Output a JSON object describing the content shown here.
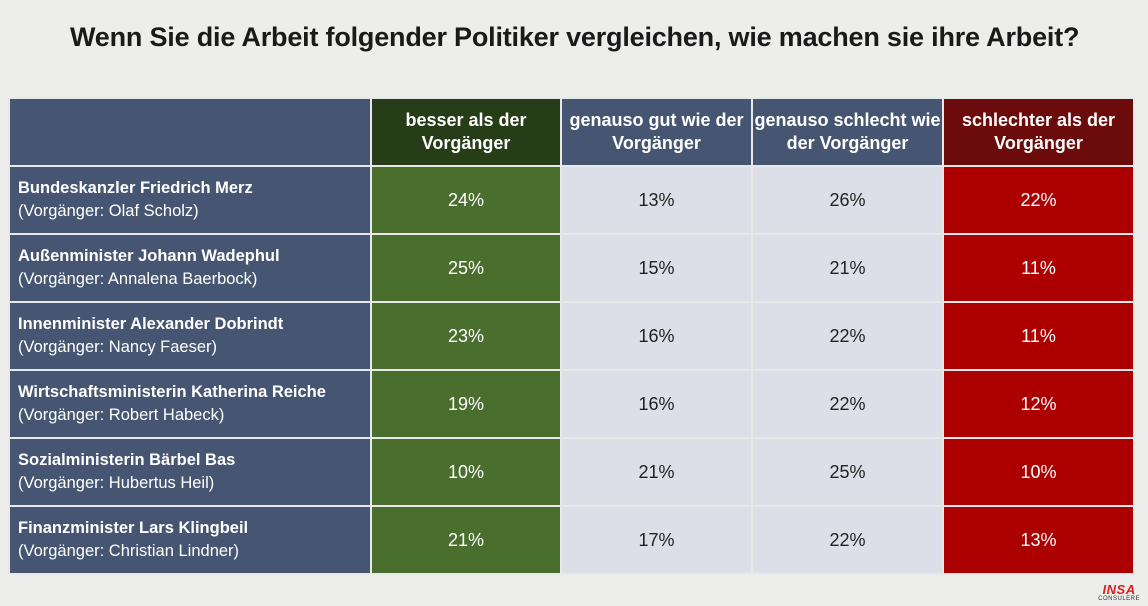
{
  "title": "Wenn Sie die Arbeit folgender Politiker vergleichen, wie machen sie ihre Arbeit?",
  "chart_data": {
    "type": "table",
    "title": "Wenn Sie die Arbeit folgender Politiker vergleichen, wie machen sie ihre Arbeit?",
    "columns": [
      {
        "key": "better",
        "label": "besser als der Vorgänger",
        "color": "#273d18",
        "cell_color": "#4a6e2d"
      },
      {
        "key": "same_good",
        "label": "genauso gut wie der Vorgänger",
        "color": "#465672",
        "cell_color": "#dcdfe7"
      },
      {
        "key": "same_bad",
        "label": "genauso schlecht wie der Vorgänger",
        "color": "#465672",
        "cell_color": "#dcdfe7"
      },
      {
        "key": "worse",
        "label": "schlechter als der Vorgänger",
        "color": "#6c0b0b",
        "cell_color": "#ac0000"
      }
    ],
    "rows": [
      {
        "politician": "Bundeskanzler Friedrich Merz",
        "predecessor": "(Vorgänger: Olaf Scholz)",
        "values": [
          "24%",
          "13%",
          "26%",
          "22%"
        ]
      },
      {
        "politician": "Außenminister Johann Wadephul",
        "predecessor": "(Vorgänger: Annalena Baerbock)",
        "values": [
          "25%",
          "15%",
          "21%",
          "11%"
        ]
      },
      {
        "politician": "Innenminister Alexander Dobrindt",
        "predecessor": "(Vorgänger: Nancy Faeser)",
        "values": [
          "23%",
          "16%",
          "22%",
          "11%"
        ]
      },
      {
        "politician": "Wirtschaftsministerin Katherina Reiche",
        "predecessor": "(Vorgänger: Robert Habeck)",
        "values": [
          "19%",
          "16%",
          "22%",
          "12%"
        ]
      },
      {
        "politician": "Sozialministerin Bärbel Bas",
        "predecessor": "(Vorgänger: Hubertus Heil)",
        "values": [
          "10%",
          "21%",
          "25%",
          "10%"
        ]
      },
      {
        "politician": "Finanzminister Lars Klingbeil",
        "predecessor": "(Vorgänger: Christian Lindner)",
        "values": [
          "21%",
          "17%",
          "22%",
          "13%"
        ]
      }
    ]
  },
  "logo": {
    "line1": "INSA",
    "line2": "CONSULERE"
  }
}
